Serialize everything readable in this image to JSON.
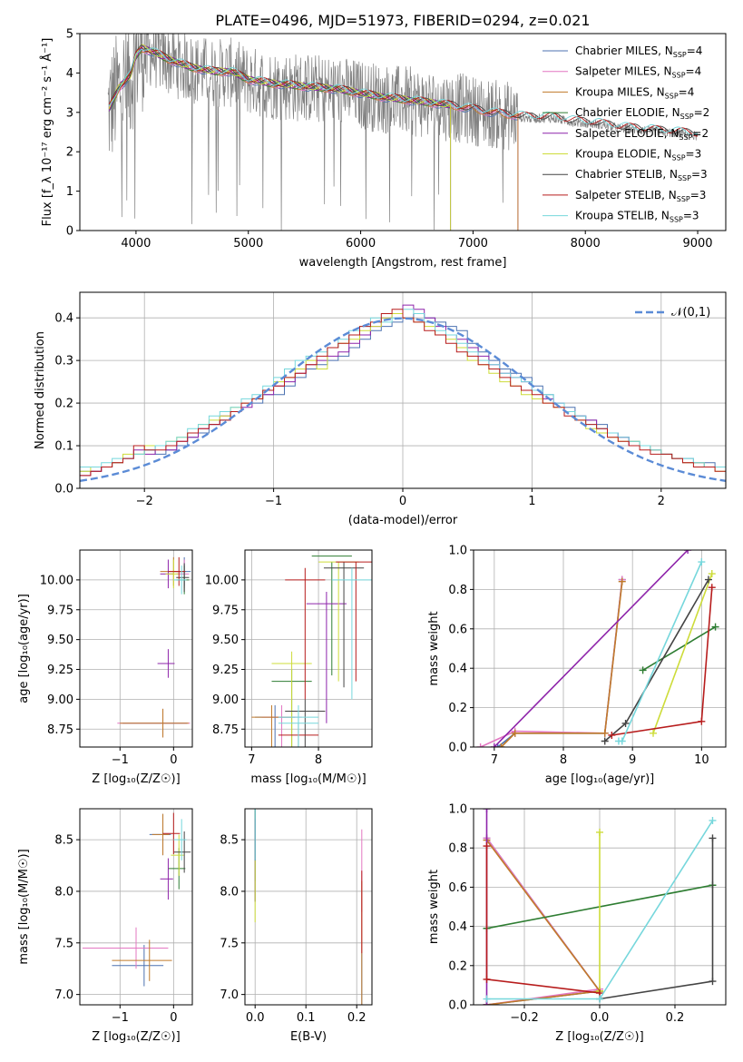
{
  "title": "PLATE=0496, MJD=51973, FIBERID=0294, z=0.021",
  "colors": {
    "chabrier_miles": "#4c72b0",
    "salpeter_miles": "#e377c2",
    "kroupa_miles": "#c07a2a",
    "chabrier_elodie": "#2e7d32",
    "salpeter_elodie": "#8e24aa",
    "kroupa_elodie": "#cddc39",
    "chabrier_stelib": "#444444",
    "salpeter_stelib": "#b71c1c",
    "kroupa_stelib": "#76d7dc",
    "spectrum": "#808080",
    "gaussian": "#5b8bd6",
    "grid": "#b0b0b0"
  },
  "chart_data": [
    {
      "id": "spectrum",
      "type": "line",
      "xlabel": "wavelength [Angstrom, rest frame]",
      "ylabel": "Flux [f_λ 10⁻¹⁷ erg cm⁻² s⁻¹ Å⁻¹]",
      "xlim": [
        3500,
        9250
      ],
      "ylim": [
        0,
        5
      ],
      "xticks": [
        4000,
        5000,
        6000,
        7000,
        8000,
        9000
      ],
      "yticks": [
        0,
        1,
        2,
        3,
        4,
        5
      ],
      "grid": false,
      "legend": "right",
      "series_names": [
        "Chabrier MILES, N_SSP=4",
        "Salpeter MILES, N_SSP=4",
        "Kroupa MILES, N_SSP=4",
        "Chabrier ELODIE, N_SSP=2",
        "Salpeter ELODIE, N_SSP=2",
        "Kroupa ELODIE, N_SSP=3",
        "Chabrier STELIB, N_SSP=3",
        "Salpeter STELIB, N_SSP=3",
        "Kroupa STELIB, N_SSP=3"
      ],
      "data_range": [
        3750,
        9000
      ],
      "model_continuum": [
        [
          3750,
          3.0
        ],
        [
          3850,
          3.6
        ],
        [
          3950,
          3.9
        ],
        [
          4000,
          4.4
        ],
        [
          4050,
          4.6
        ],
        [
          4150,
          4.5
        ],
        [
          4300,
          4.3
        ],
        [
          4500,
          4.1
        ],
        [
          4700,
          4.0
        ],
        [
          4850,
          4.0
        ],
        [
          5000,
          3.8
        ],
        [
          5200,
          3.7
        ],
        [
          5400,
          3.65
        ],
        [
          5600,
          3.6
        ],
        [
          5800,
          3.55
        ],
        [
          6000,
          3.45
        ],
        [
          6200,
          3.35
        ],
        [
          6500,
          3.25
        ],
        [
          6800,
          3.15
        ],
        [
          7000,
          3.05
        ],
        [
          7200,
          2.95
        ],
        [
          7500,
          2.85
        ],
        [
          7700,
          2.85
        ],
        [
          7900,
          2.75
        ],
        [
          8100,
          2.7
        ],
        [
          8300,
          2.6
        ],
        [
          8500,
          2.55
        ],
        [
          8700,
          2.5
        ],
        [
          8900,
          2.45
        ],
        [
          9000,
          2.4
        ]
      ]
    },
    {
      "id": "residuals",
      "type": "histogram",
      "xlabel": "(data-model)/error",
      "ylabel": "Normed distribution",
      "xlim": [
        -2.5,
        2.5
      ],
      "ylim": [
        0,
        0.46
      ],
      "xticks": [
        -2,
        -1,
        0,
        1,
        2
      ],
      "yticks": [
        0.0,
        0.1,
        0.2,
        0.3,
        0.4
      ],
      "grid": true,
      "legend": "top-right",
      "gaussian_label": "𝒩(0,1)",
      "bin_width": 0.1,
      "bin_start": -2.5,
      "series": [
        {
          "key": "chabrier_miles",
          "values": [
            0.04,
            0.04,
            0.05,
            0.06,
            0.07,
            0.08,
            0.09,
            0.08,
            0.09,
            0.1,
            0.12,
            0.13,
            0.15,
            0.16,
            0.18,
            0.2,
            0.2,
            0.22,
            0.22,
            0.24,
            0.26,
            0.28,
            0.29,
            0.3,
            0.31,
            0.33,
            0.35,
            0.37,
            0.38,
            0.39,
            0.4,
            0.41,
            0.4,
            0.39,
            0.38,
            0.37,
            0.34,
            0.32,
            0.3,
            0.28,
            0.27,
            0.26,
            0.24,
            0.22,
            0.2,
            0.19,
            0.17,
            0.16,
            0.15,
            0.13,
            0.12,
            0.11,
            0.1,
            0.09,
            0.08,
            0.07,
            0.07,
            0.06,
            0.06,
            0.05
          ]
        },
        {
          "key": "salpeter_elodie",
          "values": [
            0.03,
            0.04,
            0.05,
            0.06,
            0.07,
            0.09,
            0.08,
            0.1,
            0.09,
            0.11,
            0.12,
            0.14,
            0.15,
            0.17,
            0.18,
            0.19,
            0.21,
            0.22,
            0.24,
            0.25,
            0.27,
            0.29,
            0.3,
            0.31,
            0.32,
            0.34,
            0.36,
            0.38,
            0.4,
            0.41,
            0.43,
            0.42,
            0.4,
            0.38,
            0.36,
            0.35,
            0.33,
            0.31,
            0.29,
            0.27,
            0.26,
            0.25,
            0.23,
            0.21,
            0.2,
            0.18,
            0.17,
            0.16,
            0.14,
            0.13,
            0.12,
            0.1,
            0.1,
            0.09,
            0.08,
            0.07,
            0.06,
            0.06,
            0.05,
            0.05
          ]
        },
        {
          "key": "kroupa_elodie",
          "values": [
            0.04,
            0.05,
            0.05,
            0.06,
            0.08,
            0.08,
            0.1,
            0.1,
            0.11,
            0.12,
            0.13,
            0.15,
            0.16,
            0.17,
            0.19,
            0.2,
            0.21,
            0.23,
            0.25,
            0.26,
            0.28,
            0.3,
            0.28,
            0.33,
            0.34,
            0.35,
            0.37,
            0.38,
            0.4,
            0.41,
            0.4,
            0.39,
            0.38,
            0.36,
            0.35,
            0.33,
            0.3,
            0.29,
            0.27,
            0.25,
            0.24,
            0.22,
            0.21,
            0.2,
            0.19,
            0.18,
            0.16,
            0.14,
            0.13,
            0.12,
            0.11,
            0.11,
            0.1,
            0.09,
            0.08,
            0.07,
            0.06,
            0.06,
            0.05,
            0.04
          ]
        },
        {
          "key": "kroupa_stelib",
          "values": [
            0.05,
            0.05,
            0.06,
            0.07,
            0.07,
            0.08,
            0.09,
            0.1,
            0.11,
            0.12,
            0.14,
            0.15,
            0.17,
            0.18,
            0.19,
            0.21,
            0.22,
            0.24,
            0.26,
            0.28,
            0.3,
            0.31,
            0.32,
            0.33,
            0.35,
            0.37,
            0.38,
            0.4,
            0.39,
            0.4,
            0.42,
            0.41,
            0.39,
            0.37,
            0.36,
            0.34,
            0.32,
            0.3,
            0.29,
            0.27,
            0.26,
            0.25,
            0.23,
            0.22,
            0.2,
            0.18,
            0.17,
            0.15,
            0.14,
            0.13,
            0.12,
            0.11,
            0.1,
            0.09,
            0.08,
            0.07,
            0.07,
            0.06,
            0.05,
            0.05
          ]
        },
        {
          "key": "salpeter_stelib",
          "values": [
            0.03,
            0.04,
            0.05,
            0.06,
            0.07,
            0.1,
            0.09,
            0.09,
            0.1,
            0.11,
            0.13,
            0.14,
            0.15,
            0.16,
            0.18,
            0.2,
            0.21,
            0.23,
            0.24,
            0.26,
            0.27,
            0.29,
            0.31,
            0.33,
            0.34,
            0.36,
            0.38,
            0.39,
            0.41,
            0.42,
            0.4,
            0.39,
            0.37,
            0.36,
            0.34,
            0.32,
            0.31,
            0.29,
            0.28,
            0.26,
            0.24,
            0.23,
            0.22,
            0.2,
            0.19,
            0.17,
            0.16,
            0.15,
            0.14,
            0.12,
            0.11,
            0.1,
            0.09,
            0.08,
            0.08,
            0.07,
            0.06,
            0.05,
            0.05,
            0.04
          ]
        }
      ]
    },
    {
      "id": "age-vs-Z",
      "type": "errorbar",
      "xlabel": "Z [log₁₀(Z/Z☉)]",
      "ylabel": "age  [log₁₀(age/yr)]",
      "xlim": [
        -1.75,
        0.35
      ],
      "ylim": [
        8.6,
        10.25
      ],
      "xticks": [
        -1,
        0
      ],
      "yticks": [
        8.75,
        9.0,
        9.25,
        9.5,
        9.75,
        10.0
      ],
      "grid": true
    },
    {
      "id": "age-vs-mass",
      "type": "errorbar",
      "xlabel": "mass [log₁₀(M/M☉)]",
      "ylabel": "",
      "xlim": [
        6.9,
        8.8
      ],
      "ylim": [
        8.6,
        10.25
      ],
      "xticks": [
        7,
        8
      ],
      "yticks": [
        8.75,
        9.0,
        9.25,
        9.5,
        9.75,
        10.0
      ],
      "grid": true
    },
    {
      "id": "weight-vs-age",
      "type": "line",
      "xlabel": "age  [log₁₀(age/yr)]",
      "ylabel": "mass weight",
      "xlim": [
        6.7,
        10.35
      ],
      "ylim": [
        0,
        1.0
      ],
      "xticks": [
        7,
        8,
        9,
        10
      ],
      "yticks": [
        0.0,
        0.2,
        0.4,
        0.6,
        0.8,
        1.0
      ],
      "grid": true
    },
    {
      "id": "mass-vs-Z",
      "type": "errorbar",
      "xlabel": "Z [log₁₀(Z/Z☉)]",
      "ylabel": "mass [log₁₀(M/M☉)]",
      "xlim": [
        -1.75,
        0.35
      ],
      "ylim": [
        6.9,
        8.8
      ],
      "xticks": [
        -1,
        0
      ],
      "yticks": [
        7.0,
        7.5,
        8.0,
        8.5
      ],
      "grid": true
    },
    {
      "id": "mass-vs-ebv",
      "type": "errorbar",
      "xlabel": "E(B-V)",
      "ylabel": "",
      "xlim": [
        -0.02,
        0.23
      ],
      "ylim": [
        6.9,
        8.8
      ],
      "xticks": [
        0.0,
        0.1,
        0.2
      ],
      "yticks": [
        7.0,
        7.5,
        8.0,
        8.5
      ],
      "grid": true
    },
    {
      "id": "weight-vs-Z",
      "type": "line",
      "xlabel": "Z [log₁₀(Z/Z☉)]",
      "ylabel": "mass weight",
      "xlim": [
        -0.335,
        0.335
      ],
      "ylim": [
        0,
        1.0
      ],
      "xticks": [
        -0.2,
        0.0,
        0.2
      ],
      "yticks": [
        0.0,
        0.2,
        0.4,
        0.6,
        0.8,
        1.0
      ],
      "grid": true
    }
  ],
  "models": [
    {
      "key": "chabrier_miles",
      "pts": [
        [
          7.05,
          0.0,
          -0.3,
          7.3,
          0.0
        ],
        [
          7.3,
          0.07,
          0.0,
          7.4,
          0.0
        ],
        [
          8.6,
          0.07,
          0.0,
          7.5,
          0.0
        ],
        [
          8.85,
          0.85,
          -0.3,
          7.35,
          0.0
        ]
      ],
      "ageZ": [
        [
          -0.2,
          8.8,
          1.5
        ],
        [
          0.2,
          10.07,
          0.4
        ]
      ],
      "massZ": [
        [
          -0.55,
          7.28,
          1.2
        ],
        [
          -0.2,
          8.55,
          0.5
        ]
      ],
      "ebv": [
        [
          0.0,
          8.5,
          0.4
        ],
        [
          0.21,
          7.1,
          0.3
        ]
      ]
    },
    {
      "key": "salpeter_miles",
      "pts": [
        [
          6.8,
          0.0,
          -0.3,
          7.45,
          0.0
        ],
        [
          7.3,
          0.08,
          0.0,
          7.45,
          0.0
        ],
        [
          8.6,
          0.07,
          0.0,
          7.45,
          0.0
        ],
        [
          8.85,
          0.85,
          -0.3,
          7.45,
          0.0
        ]
      ],
      "ageZ": [
        [
          -0.2,
          8.8,
          1.7
        ],
        [
          0.2,
          10.05,
          0.3
        ]
      ],
      "massZ": [
        [
          -0.7,
          7.45,
          2.0
        ]
      ],
      "ebv": [
        [
          0.21,
          8.2,
          0.4
        ]
      ]
    },
    {
      "key": "kroupa_miles",
      "pts": [
        [
          7.1,
          0.0,
          -0.3,
          7.3,
          0.0
        ],
        [
          7.3,
          0.07,
          0.0,
          7.3,
          0.0
        ],
        [
          8.6,
          0.07,
          0.0,
          7.3,
          0.0
        ],
        [
          8.85,
          0.84,
          -0.3,
          7.3,
          0.0
        ]
      ],
      "ageZ": [
        [
          -0.2,
          8.8,
          1.6
        ],
        [
          0.0,
          10.07,
          0.5
        ]
      ],
      "massZ": [
        [
          -0.45,
          7.33,
          1.4
        ],
        [
          -0.2,
          8.55,
          0.4
        ]
      ],
      "ebv": [
        [
          0.21,
          7.5,
          0.6
        ]
      ]
    },
    {
      "key": "chabrier_elodie",
      "pts": [
        [
          9.15,
          0.39,
          -0.3,
          7.6,
          0.0
        ],
        [
          10.2,
          0.61,
          0.3,
          8.2,
          0.0
        ]
      ],
      "ageZ": [
        [
          0.2,
          10.0,
          0.3
        ]
      ],
      "massZ": [
        [
          0.1,
          8.22,
          0.4
        ]
      ],
      "ebv": [
        [
          0.0,
          8.4,
          0.5
        ]
      ]
    },
    {
      "key": "salpeter_elodie",
      "pts": [
        [
          7.0,
          0.0,
          -0.3,
          7.5,
          0.0
        ],
        [
          9.8,
          1.0,
          -0.3,
          8.12,
          0.0
        ]
      ],
      "ageZ": [
        [
          -0.1,
          9.3,
          0.4
        ],
        [
          -0.1,
          10.05,
          0.3
        ]
      ],
      "massZ": [
        [
          -0.1,
          8.12,
          0.3
        ]
      ],
      "ebv": [
        [
          0.0,
          8.3,
          0.4
        ]
      ]
    },
    {
      "key": "kroupa_elodie",
      "pts": [
        [
          9.3,
          0.07,
          0.0,
          7.6,
          0.0
        ],
        [
          10.15,
          0.88,
          0.0,
          8.3,
          0.0
        ]
      ],
      "ageZ": [
        [
          0.0,
          10.05,
          0.3
        ]
      ],
      "massZ": [
        [
          0.1,
          8.35,
          0.3
        ]
      ],
      "ebv": [
        [
          0.0,
          8.0,
          0.3
        ]
      ]
    },
    {
      "key": "chabrier_stelib",
      "pts": [
        [
          8.6,
          0.03,
          0.0,
          7.6,
          0.0
        ],
        [
          8.9,
          0.12,
          0.3,
          7.8,
          0.0
        ],
        [
          10.1,
          0.85,
          0.3,
          8.38,
          0.0
        ]
      ],
      "ageZ": [
        [
          0.2,
          10.02,
          0.3
        ]
      ],
      "massZ": [
        [
          0.2,
          8.38,
          0.4
        ]
      ],
      "ebv": [
        [
          0.0,
          8.6,
          0.3
        ]
      ]
    },
    {
      "key": "salpeter_stelib",
      "pts": [
        [
          8.7,
          0.06,
          0.0,
          7.7,
          0.0
        ],
        [
          10.0,
          0.13,
          -0.3,
          7.8,
          0.0
        ],
        [
          10.15,
          0.81,
          -0.3,
          8.56,
          0.0
        ]
      ],
      "ageZ": [
        [
          0.1,
          10.07,
          0.4
        ]
      ],
      "massZ": [
        [
          0.0,
          8.56,
          0.4
        ]
      ],
      "ebv": [
        [
          0.21,
          7.8,
          0.4
        ]
      ]
    },
    {
      "key": "kroupa_stelib",
      "pts": [
        [
          8.8,
          0.03,
          -0.3,
          7.7,
          0.0
        ],
        [
          8.85,
          0.03,
          0.0,
          7.7,
          0.0
        ],
        [
          10.0,
          0.94,
          0.3,
          8.5,
          0.0
        ]
      ],
      "ageZ": [
        [
          0.15,
          10.0,
          0.3
        ]
      ],
      "massZ": [
        [
          0.15,
          8.5,
          0.3
        ]
      ],
      "ebv": [
        [
          0.0,
          8.6,
          0.3
        ]
      ]
    }
  ]
}
